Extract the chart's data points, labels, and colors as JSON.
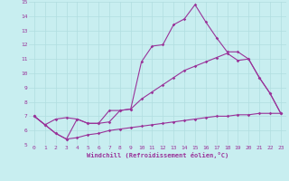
{
  "xlabel": "Windchill (Refroidissement éolien,°C)",
  "bg_color": "#c8eef0",
  "grid_color": "#b0dde0",
  "line_color": "#993399",
  "xlim": [
    -0.5,
    23.5
  ],
  "ylim": [
    5,
    15
  ],
  "yticks": [
    5,
    6,
    7,
    8,
    9,
    10,
    11,
    12,
    13,
    14,
    15
  ],
  "xticks": [
    0,
    1,
    2,
    3,
    4,
    5,
    6,
    7,
    8,
    9,
    10,
    11,
    12,
    13,
    14,
    15,
    16,
    17,
    18,
    19,
    20,
    21,
    22,
    23
  ],
  "line1_x": [
    0,
    1,
    2,
    3,
    4,
    5,
    6,
    7,
    8,
    9,
    10,
    11,
    12,
    13,
    14,
    15,
    16,
    17,
    18,
    19,
    20,
    21,
    22,
    23
  ],
  "line1_y": [
    7.0,
    6.4,
    5.8,
    5.4,
    5.5,
    5.7,
    5.8,
    6.0,
    6.1,
    6.2,
    6.3,
    6.4,
    6.5,
    6.6,
    6.7,
    6.8,
    6.9,
    7.0,
    7.0,
    7.1,
    7.1,
    7.2,
    7.2,
    7.2
  ],
  "line2_x": [
    0,
    1,
    2,
    3,
    4,
    5,
    6,
    7,
    8,
    9,
    10,
    11,
    12,
    13,
    14,
    15,
    16,
    17,
    18,
    19,
    20,
    21,
    22,
    23
  ],
  "line2_y": [
    7.0,
    6.4,
    5.8,
    5.4,
    6.8,
    6.5,
    6.5,
    7.4,
    7.4,
    7.5,
    10.8,
    11.9,
    12.0,
    13.4,
    13.8,
    14.8,
    13.6,
    12.5,
    11.5,
    11.5,
    11.0,
    9.7,
    8.6,
    7.2
  ],
  "line3_x": [
    0,
    1,
    2,
    3,
    4,
    5,
    6,
    7,
    8,
    9,
    10,
    11,
    12,
    13,
    14,
    15,
    16,
    17,
    18,
    19,
    20,
    21,
    22,
    23
  ],
  "line3_y": [
    7.0,
    6.4,
    6.8,
    6.9,
    6.8,
    6.5,
    6.5,
    6.6,
    7.4,
    7.5,
    8.2,
    8.7,
    9.2,
    9.7,
    10.2,
    10.5,
    10.8,
    11.1,
    11.4,
    10.9,
    11.0,
    9.7,
    8.6,
    7.2
  ]
}
